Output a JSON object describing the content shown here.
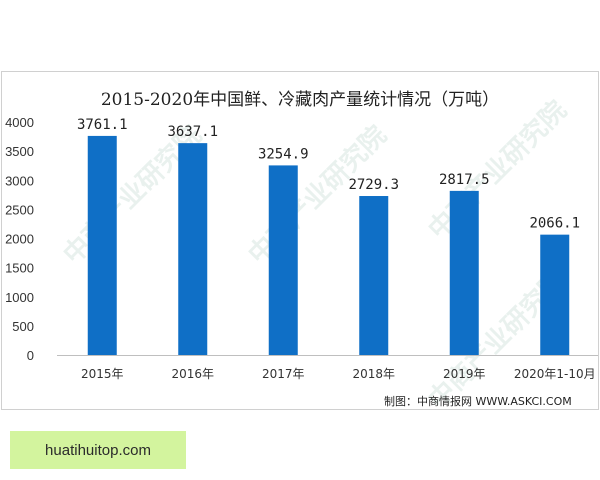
{
  "chart_data": {
    "type": "bar",
    "title": "2015-2020年中国鲜、冷藏肉产量统计情况（万吨）",
    "categories": [
      "2015年",
      "2016年",
      "2017年",
      "2018年",
      "2019年",
      "2020年1-10月"
    ],
    "values": [
      3761.1,
      3637.1,
      3254.9,
      2729.3,
      2817.5,
      2066.1
    ],
    "value_labels": [
      "3761.1",
      "3637.1",
      "3254.9",
      "2729.3",
      "2817.5",
      "2066.1"
    ],
    "ylim": [
      0,
      4000
    ],
    "yticks": [
      0,
      500,
      1000,
      1500,
      2000,
      2500,
      3000,
      3500,
      4000
    ],
    "bar_color": "#0f6fc6",
    "grid": false,
    "legend": "none",
    "xlabel": "",
    "ylabel": ""
  },
  "source": "制图：中商情报网 WWW.ASKCI.COM",
  "watermark": "中商产业研究院",
  "site_badge": "huatihuitop.com"
}
